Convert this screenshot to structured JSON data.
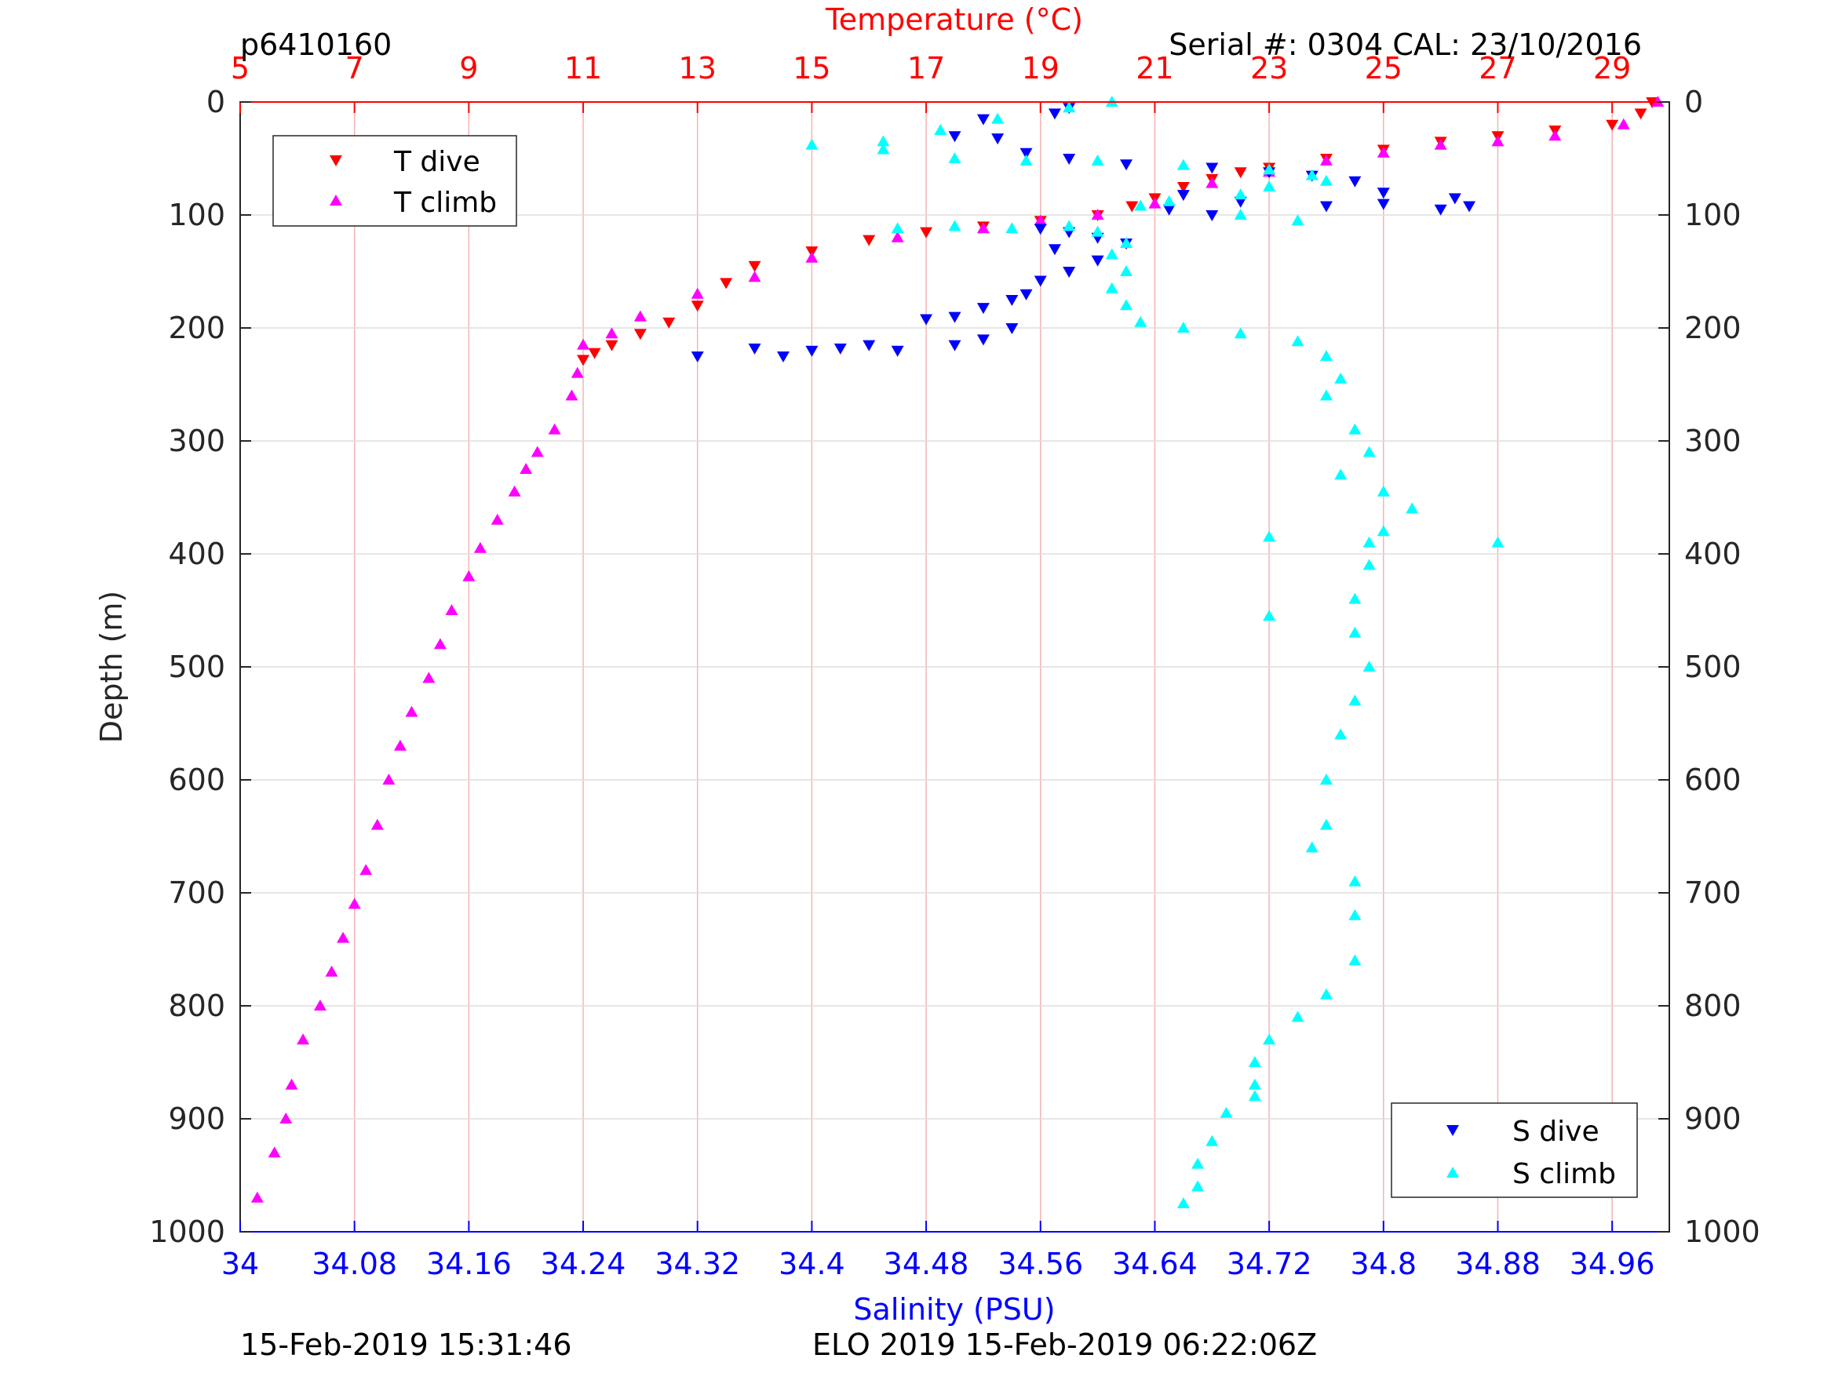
{
  "header": {
    "profile_id": "p6410160",
    "serial_cal": "Serial #: 0304  CAL: 23/10/2016"
  },
  "footer": {
    "left": "15-Feb-2019 15:31:46",
    "right": "ELO 2019 15-Feb-2019 06:22:06Z"
  },
  "colors": {
    "t_dive": "#ff0000",
    "t_climb": "#ff00ff",
    "s_dive": "#0000ff",
    "s_climb": "#00ffff",
    "temp_axis": "#ff0000",
    "sal_axis": "#0000ff",
    "grid_temp": "#f4b4b4",
    "grid_depth": "#dddddd"
  },
  "chart_data": {
    "type": "scatter",
    "top_axis": {
      "label": "Temperature (°C)",
      "range": [
        5,
        30
      ],
      "ticks": [
        "5",
        "7",
        "9",
        "11",
        "13",
        "15",
        "17",
        "19",
        "21",
        "23",
        "25",
        "27",
        "29"
      ]
    },
    "bottom_axis": {
      "label": "Salinity (PSU)",
      "range": [
        34,
        35
      ],
      "ticks": [
        "34",
        "34.08",
        "34.16",
        "34.24",
        "34.32",
        "34.4",
        "34.48",
        "34.56",
        "34.64",
        "34.72",
        "34.8",
        "34.88",
        "34.96"
      ]
    },
    "left_axis": {
      "label": "Depth (m)",
      "range": [
        0,
        1000
      ],
      "reversed": true,
      "ticks": [
        "0",
        "100",
        "200",
        "300",
        "400",
        "500",
        "600",
        "700",
        "800",
        "900",
        "1000"
      ]
    },
    "right_axis": {
      "range": [
        0,
        1000
      ],
      "reversed": true,
      "ticks": [
        "0",
        "100",
        "200",
        "300",
        "400",
        "500",
        "600",
        "700",
        "800",
        "900",
        "1000"
      ]
    },
    "grid": true,
    "legend_temperature": {
      "placement": "top-left",
      "entries": [
        "T dive",
        "T climb"
      ]
    },
    "legend_salinity": {
      "placement": "bottom-right",
      "entries": [
        "S dive",
        "S climb"
      ]
    },
    "series": [
      {
        "name": "T dive",
        "axis": "temperature",
        "marker": "triangle-down",
        "points": [
          [
            29.7,
            0
          ],
          [
            29.5,
            10
          ],
          [
            29.0,
            20
          ],
          [
            28.0,
            25
          ],
          [
            27.0,
            30
          ],
          [
            26.0,
            35
          ],
          [
            25.0,
            42
          ],
          [
            24.0,
            50
          ],
          [
            23.0,
            58
          ],
          [
            22.5,
            62
          ],
          [
            22.0,
            68
          ],
          [
            21.5,
            75
          ],
          [
            21.0,
            85
          ],
          [
            20.6,
            92
          ],
          [
            20.0,
            100
          ],
          [
            19.0,
            105
          ],
          [
            18.0,
            110
          ],
          [
            17.0,
            115
          ],
          [
            16.0,
            122
          ],
          [
            15.0,
            132
          ],
          [
            14.0,
            145
          ],
          [
            13.5,
            160
          ],
          [
            13.0,
            180
          ],
          [
            12.5,
            195
          ],
          [
            12.0,
            205
          ],
          [
            11.5,
            215
          ],
          [
            11.2,
            222
          ],
          [
            11.0,
            228
          ]
        ]
      },
      {
        "name": "T climb",
        "axis": "temperature",
        "marker": "triangle-up",
        "points": [
          [
            29.8,
            0
          ],
          [
            29.2,
            20
          ],
          [
            28.0,
            30
          ],
          [
            27.0,
            35
          ],
          [
            26.0,
            38
          ],
          [
            25.0,
            45
          ],
          [
            24.0,
            52
          ],
          [
            23.0,
            62
          ],
          [
            22.0,
            72
          ],
          [
            21.0,
            90
          ],
          [
            20.0,
            100
          ],
          [
            19.0,
            105
          ],
          [
            18.0,
            112
          ],
          [
            16.5,
            120
          ],
          [
            15.0,
            138
          ],
          [
            14.0,
            155
          ],
          [
            13.0,
            170
          ],
          [
            12.0,
            190
          ],
          [
            11.5,
            205
          ],
          [
            11.0,
            215
          ],
          [
            10.9,
            240
          ],
          [
            10.8,
            260
          ],
          [
            10.5,
            290
          ],
          [
            10.2,
            310
          ],
          [
            10.0,
            325
          ],
          [
            9.8,
            345
          ],
          [
            9.5,
            370
          ],
          [
            9.2,
            395
          ],
          [
            9.0,
            420
          ],
          [
            8.7,
            450
          ],
          [
            8.5,
            480
          ],
          [
            8.3,
            510
          ],
          [
            8.0,
            540
          ],
          [
            7.8,
            570
          ],
          [
            7.6,
            600
          ],
          [
            7.4,
            640
          ],
          [
            7.2,
            680
          ],
          [
            7.0,
            710
          ],
          [
            6.8,
            740
          ],
          [
            6.6,
            770
          ],
          [
            6.4,
            800
          ],
          [
            6.1,
            830
          ],
          [
            5.9,
            870
          ],
          [
            5.8,
            900
          ],
          [
            5.6,
            930
          ],
          [
            5.3,
            970
          ]
        ]
      },
      {
        "name": "S dive",
        "axis": "salinity",
        "marker": "triangle-down",
        "points": [
          [
            34.58,
            5
          ],
          [
            34.57,
            10
          ],
          [
            34.52,
            15
          ],
          [
            34.5,
            30
          ],
          [
            34.53,
            32
          ],
          [
            34.55,
            45
          ],
          [
            34.58,
            50
          ],
          [
            34.62,
            55
          ],
          [
            34.68,
            58
          ],
          [
            34.72,
            62
          ],
          [
            34.75,
            65
          ],
          [
            34.78,
            70
          ],
          [
            34.8,
            80
          ],
          [
            34.85,
            85
          ],
          [
            34.86,
            92
          ],
          [
            34.84,
            95
          ],
          [
            34.8,
            90
          ],
          [
            34.76,
            92
          ],
          [
            34.7,
            88
          ],
          [
            34.66,
            82
          ],
          [
            34.65,
            95
          ],
          [
            34.68,
            100
          ],
          [
            34.56,
            112
          ],
          [
            34.58,
            115
          ],
          [
            34.6,
            120
          ],
          [
            34.62,
            125
          ],
          [
            34.57,
            130
          ],
          [
            34.6,
            140
          ],
          [
            34.58,
            150
          ],
          [
            34.56,
            158
          ],
          [
            34.55,
            170
          ],
          [
            34.54,
            175
          ],
          [
            34.52,
            182
          ],
          [
            34.5,
            190
          ],
          [
            34.48,
            192
          ],
          [
            34.54,
            200
          ],
          [
            34.52,
            210
          ],
          [
            34.5,
            215
          ],
          [
            34.46,
            220
          ],
          [
            34.44,
            215
          ],
          [
            34.4,
            220
          ],
          [
            34.38,
            225
          ],
          [
            34.42,
            218
          ],
          [
            34.32,
            225
          ],
          [
            34.36,
            218
          ]
        ]
      },
      {
        "name": "S climb",
        "axis": "salinity",
        "marker": "triangle-up",
        "points": [
          [
            34.61,
            0
          ],
          [
            34.58,
            5
          ],
          [
            34.53,
            15
          ],
          [
            34.49,
            25
          ],
          [
            34.45,
            35
          ],
          [
            34.4,
            38
          ],
          [
            34.45,
            42
          ],
          [
            34.5,
            50
          ],
          [
            34.55,
            52
          ],
          [
            34.6,
            52
          ],
          [
            34.66,
            56
          ],
          [
            34.72,
            60
          ],
          [
            34.75,
            65
          ],
          [
            34.76,
            70
          ],
          [
            34.72,
            75
          ],
          [
            34.7,
            82
          ],
          [
            34.65,
            88
          ],
          [
            34.63,
            92
          ],
          [
            34.7,
            100
          ],
          [
            34.74,
            105
          ],
          [
            34.58,
            110
          ],
          [
            34.54,
            112
          ],
          [
            34.5,
            110
          ],
          [
            34.46,
            112
          ],
          [
            34.6,
            115
          ],
          [
            34.62,
            125
          ],
          [
            34.61,
            135
          ],
          [
            34.62,
            150
          ],
          [
            34.61,
            165
          ],
          [
            34.62,
            180
          ],
          [
            34.63,
            195
          ],
          [
            34.66,
            200
          ],
          [
            34.7,
            205
          ],
          [
            34.74,
            212
          ],
          [
            34.76,
            225
          ],
          [
            34.77,
            245
          ],
          [
            34.76,
            260
          ],
          [
            34.78,
            290
          ],
          [
            34.79,
            310
          ],
          [
            34.77,
            330
          ],
          [
            34.8,
            345
          ],
          [
            34.82,
            360
          ],
          [
            34.8,
            380
          ],
          [
            34.79,
            390
          ],
          [
            34.72,
            385
          ],
          [
            34.88,
            390
          ],
          [
            34.79,
            410
          ],
          [
            34.78,
            440
          ],
          [
            34.72,
            455
          ],
          [
            34.78,
            470
          ],
          [
            34.79,
            500
          ],
          [
            34.78,
            530
          ],
          [
            34.77,
            560
          ],
          [
            34.76,
            600
          ],
          [
            34.76,
            640
          ],
          [
            34.75,
            660
          ],
          [
            34.78,
            690
          ],
          [
            34.78,
            720
          ],
          [
            34.78,
            760
          ],
          [
            34.76,
            790
          ],
          [
            34.74,
            810
          ],
          [
            34.72,
            830
          ],
          [
            34.71,
            850
          ],
          [
            34.71,
            870
          ],
          [
            34.71,
            880
          ],
          [
            34.69,
            895
          ],
          [
            34.68,
            920
          ],
          [
            34.67,
            940
          ],
          [
            34.67,
            960
          ],
          [
            34.66,
            975
          ]
        ]
      }
    ]
  }
}
